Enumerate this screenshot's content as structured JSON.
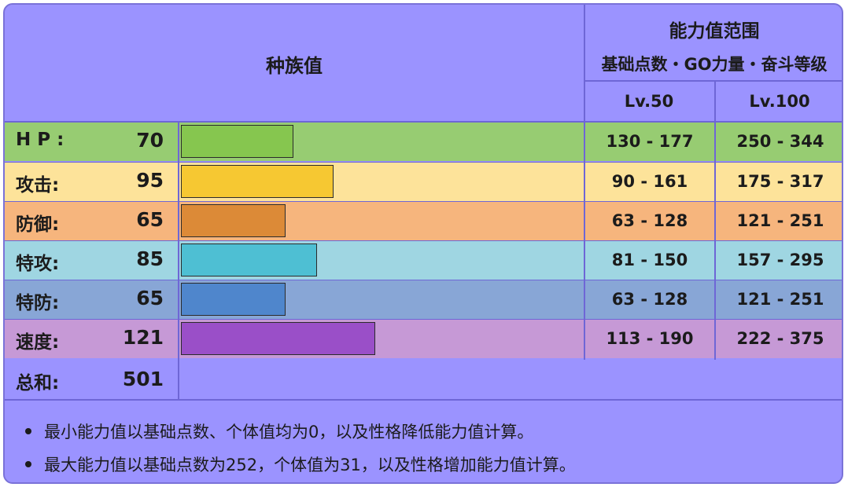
{
  "header": {
    "base_stats_label": "种族值",
    "range_title": "能力值范围",
    "range_subtitle": "基础点数・GO力量・奋斗等级",
    "lv50_label": "Lv.50",
    "lv100_label": "Lv.100"
  },
  "stats": [
    {
      "label": "H P :",
      "value": "70",
      "bar_fraction": 0.2745,
      "lv50": "130 - 177",
      "lv100": "250 - 344",
      "row_color": "#97cc72",
      "bar_color": "#86c64f"
    },
    {
      "label": "攻击:",
      "value": "95",
      "bar_fraction": 0.3725,
      "lv50": "90 - 161",
      "lv100": "175 - 317",
      "row_color": "#fde39a",
      "bar_color": "#f6c832"
    },
    {
      "label": "防御:",
      "value": "65",
      "bar_fraction": 0.2549,
      "lv50": "63 - 128",
      "lv100": "121 - 251",
      "row_color": "#f6b57d",
      "bar_color": "#dc8a37"
    },
    {
      "label": "特攻:",
      "value": "85",
      "bar_fraction": 0.3333,
      "lv50": "81 - 150",
      "lv100": "157 - 295",
      "row_color": "#9fd6e2",
      "bar_color": "#4ebfd3"
    },
    {
      "label": "特防:",
      "value": "65",
      "bar_fraction": 0.2549,
      "lv50": "63 - 128",
      "lv100": "121 - 251",
      "row_color": "#88a6d6",
      "bar_color": "#4f86cc"
    },
    {
      "label": "速度:",
      "value": "121",
      "bar_fraction": 0.4745,
      "lv50": "113 - 190",
      "lv100": "222 - 375",
      "row_color": "#c699d6",
      "bar_color": "#9a4fc8"
    }
  ],
  "total": {
    "label": "总和:",
    "value": "501"
  },
  "notes": [
    "最小能力值以基础点数、个体值均为0，以及性格降低能力值计算。",
    "最大能力值以基础点数为252，个体值为31，以及性格增加能力值计算。"
  ]
}
